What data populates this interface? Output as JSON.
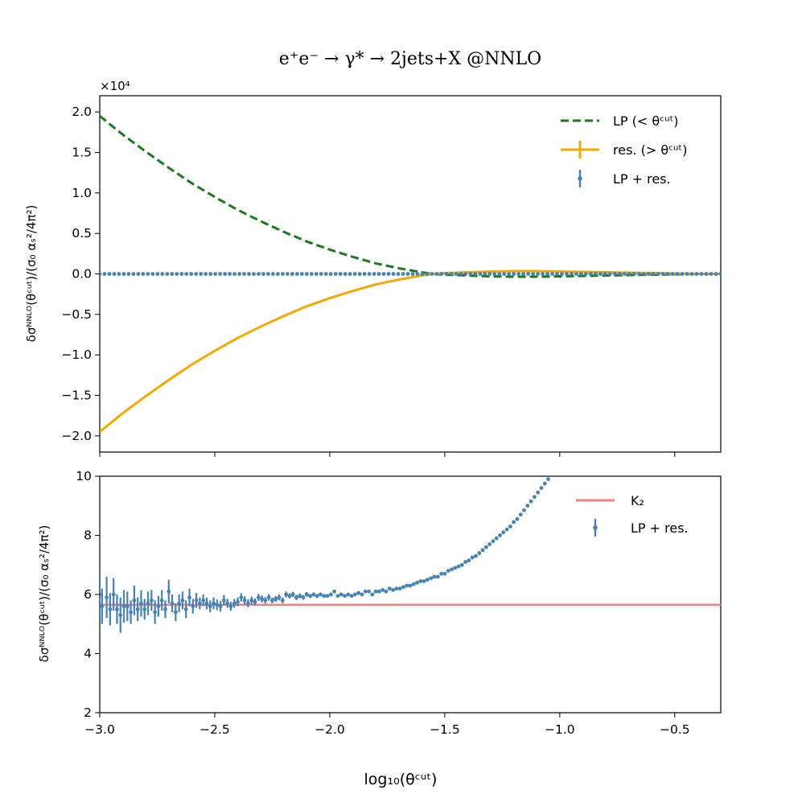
{
  "chart_data": [
    {
      "type": "line",
      "title": "e⁺e⁻ → γ* → 2jets+X @NNLO",
      "xlabel": "",
      "ylabel": "δσᴺᴺᴸᴼ(θᶜᵘᵗ)/(σ₀ αₛ²/4π²)",
      "offset_label": "×10⁴",
      "xlim": [
        -3.0,
        -0.3
      ],
      "ylim": [
        -2.2,
        2.2
      ],
      "y_scale_note": "values in units of 10^4",
      "yticks": [
        "−2.0",
        "−1.5",
        "−1.0",
        "−0.5",
        "0.0",
        "0.5",
        "1.0",
        "1.5",
        "2.0"
      ],
      "ytick_values": [
        -2.0,
        -1.5,
        -1.0,
        -0.5,
        0.0,
        0.5,
        1.0,
        1.5,
        2.0
      ],
      "legend": [
        "LP (< θᶜᵘᵗ)",
        "res. (> θᶜᵘᵗ)",
        "LP + res."
      ],
      "legend_position": "top-right",
      "series": [
        {
          "name": "LP (< θᶜᵘᵗ)",
          "style": "dashed",
          "color": "#1a7a1a",
          "x": [
            -3.0,
            -2.9,
            -2.8,
            -2.7,
            -2.6,
            -2.5,
            -2.4,
            -2.3,
            -2.2,
            -2.1,
            -2.0,
            -1.9,
            -1.8,
            -1.7,
            -1.6,
            -1.55,
            -1.5,
            -1.4,
            -1.3,
            -1.2,
            -1.1,
            -1.0,
            -0.9,
            -0.8,
            -0.7,
            -0.6,
            -0.5,
            -0.4,
            -0.3
          ],
          "y": [
            1.95,
            1.72,
            1.51,
            1.31,
            1.12,
            0.95,
            0.79,
            0.65,
            0.52,
            0.4,
            0.3,
            0.21,
            0.13,
            0.07,
            0.02,
            0.0,
            -0.01,
            -0.02,
            -0.03,
            -0.035,
            -0.035,
            -0.03,
            -0.025,
            -0.02,
            -0.015,
            -0.01,
            -0.005,
            0.0,
            0.0
          ]
        },
        {
          "name": "res. (> θᶜᵘᵗ)",
          "style": "solid",
          "color": "#f5a800",
          "x": [
            -3.0,
            -2.9,
            -2.8,
            -2.7,
            -2.6,
            -2.5,
            -2.4,
            -2.3,
            -2.2,
            -2.1,
            -2.0,
            -1.9,
            -1.8,
            -1.7,
            -1.6,
            -1.55,
            -1.5,
            -1.4,
            -1.3,
            -1.2,
            -1.1,
            -1.0,
            -0.9,
            -0.8,
            -0.7,
            -0.6,
            -0.5,
            -0.4,
            -0.3
          ],
          "y": [
            -1.95,
            -1.72,
            -1.51,
            -1.31,
            -1.12,
            -0.95,
            -0.79,
            -0.65,
            -0.52,
            -0.4,
            -0.3,
            -0.21,
            -0.13,
            -0.07,
            -0.02,
            0.0,
            0.01,
            0.02,
            0.03,
            0.035,
            0.035,
            0.03,
            0.025,
            0.02,
            0.015,
            0.01,
            0.005,
            0.0,
            0.0
          ]
        },
        {
          "name": "LP + res.",
          "style": "points",
          "color": "#4682b4",
          "x_start": -3.0,
          "x_end": -0.3,
          "count": 130,
          "y_const": 0.0
        }
      ]
    },
    {
      "type": "scatter",
      "title": "",
      "xlabel": "log₁₀(θᶜᵘᵗ)",
      "ylabel": "δσᴺᴺᴸᴼ(θᶜᵘᵗ)/(σ₀ αₛ²/4π²)",
      "xlim": [
        -3.0,
        -0.3
      ],
      "ylim": [
        2,
        10
      ],
      "xticks": [
        "−3.0",
        "−2.5",
        "−2.0",
        "−1.5",
        "−1.0",
        "−0.5"
      ],
      "xtick_values": [
        -3.0,
        -2.5,
        -2.0,
        -1.5,
        -1.0,
        -0.5
      ],
      "yticks": [
        "2",
        "4",
        "6",
        "8",
        "10"
      ],
      "ytick_values": [
        2,
        4,
        6,
        8,
        10
      ],
      "legend": [
        "K₂",
        "LP + res."
      ],
      "legend_position": "top-right",
      "K2": 5.65,
      "K2_color": "#f08080",
      "points_color": "#4682b4",
      "points": [
        [
          -3.0,
          6.0,
          0.75
        ],
        [
          -2.99,
          5.6,
          0.6
        ],
        [
          -2.97,
          5.9,
          0.7
        ],
        [
          -2.955,
          5.5,
          0.55
        ],
        [
          -2.94,
          6.0,
          0.55
        ],
        [
          -2.925,
          5.5,
          0.5
        ],
        [
          -2.91,
          5.3,
          0.6
        ],
        [
          -2.895,
          5.6,
          0.55
        ],
        [
          -2.88,
          5.6,
          0.5
        ],
        [
          -2.865,
          5.4,
          0.4
        ],
        [
          -2.85,
          5.8,
          0.5
        ],
        [
          -2.835,
          5.5,
          0.4
        ],
        [
          -2.82,
          5.7,
          0.45
        ],
        [
          -2.805,
          5.5,
          0.35
        ],
        [
          -2.79,
          5.7,
          0.4
        ],
        [
          -2.775,
          5.8,
          0.35
        ],
        [
          -2.76,
          5.4,
          0.4
        ],
        [
          -2.745,
          5.6,
          0.35
        ],
        [
          -2.73,
          5.8,
          0.35
        ],
        [
          -2.715,
          5.5,
          0.3
        ],
        [
          -2.7,
          6.1,
          0.4
        ],
        [
          -2.685,
          5.7,
          0.3
        ],
        [
          -2.67,
          5.4,
          0.3
        ],
        [
          -2.655,
          5.7,
          0.3
        ],
        [
          -2.64,
          5.8,
          0.3
        ],
        [
          -2.625,
          5.5,
          0.3
        ],
        [
          -2.61,
          5.9,
          0.3
        ],
        [
          -2.595,
          5.6,
          0.25
        ],
        [
          -2.58,
          5.8,
          0.25
        ],
        [
          -2.565,
          5.7,
          0.2
        ],
        [
          -2.55,
          5.8,
          0.2
        ],
        [
          -2.535,
          5.7,
          0.2
        ],
        [
          -2.52,
          5.6,
          0.2
        ],
        [
          -2.505,
          5.7,
          0.2
        ],
        [
          -2.49,
          5.65,
          0.18
        ],
        [
          -2.475,
          5.6,
          0.18
        ],
        [
          -2.46,
          5.8,
          0.18
        ],
        [
          -2.445,
          5.7,
          0.15
        ],
        [
          -2.43,
          5.6,
          0.15
        ],
        [
          -2.415,
          5.7,
          0.15
        ],
        [
          -2.4,
          5.75,
          0.15
        ],
        [
          -2.385,
          5.9,
          0.14
        ],
        [
          -2.37,
          5.8,
          0.14
        ],
        [
          -2.355,
          5.7,
          0.13
        ],
        [
          -2.34,
          5.8,
          0.13
        ],
        [
          -2.325,
          5.75,
          0.12
        ],
        [
          -2.31,
          5.9,
          0.12
        ],
        [
          -2.295,
          5.85,
          0.12
        ],
        [
          -2.28,
          5.8,
          0.11
        ],
        [
          -2.265,
          5.9,
          0.11
        ],
        [
          -2.25,
          5.8,
          0.1
        ],
        [
          -2.235,
          5.85,
          0.1
        ],
        [
          -2.22,
          5.9,
          0.1
        ],
        [
          -2.205,
          5.8,
          0.1
        ],
        [
          -2.19,
          6.0,
          0.1
        ],
        [
          -2.175,
          5.95,
          0.09
        ],
        [
          -2.16,
          6.0,
          0.09
        ],
        [
          -2.145,
          5.9,
          0.09
        ],
        [
          -2.13,
          5.95,
          0.08
        ],
        [
          -2.115,
          5.9,
          0.08
        ],
        [
          -2.1,
          6.0,
          0.08
        ],
        [
          -2.085,
          5.95,
          0.07
        ],
        [
          -2.07,
          6.0,
          0.07
        ],
        [
          -2.055,
          5.95,
          0.07
        ],
        [
          -2.04,
          6.0,
          0.06
        ],
        [
          -2.025,
          5.95,
          0.06
        ],
        [
          -2.01,
          5.95,
          0.06
        ],
        [
          -1.995,
          6.0,
          0.05
        ],
        [
          -1.98,
          6.1,
          0.05
        ],
        [
          -1.965,
          5.95,
          0.05
        ],
        [
          -1.95,
          6.0,
          0.05
        ],
        [
          -1.935,
          5.95,
          0.05
        ],
        [
          -1.92,
          6.0,
          0.04
        ],
        [
          -1.905,
          5.95,
          0.04
        ],
        [
          -1.89,
          6.0,
          0.04
        ],
        [
          -1.875,
          6.05,
          0.04
        ],
        [
          -1.86,
          6.0,
          0.04
        ],
        [
          -1.845,
          6.1,
          0.03
        ],
        [
          -1.83,
          6.1,
          0.03
        ],
        [
          -1.815,
          6.0,
          0.03
        ],
        [
          -1.8,
          6.1,
          0.03
        ],
        [
          -1.785,
          6.1,
          0.03
        ],
        [
          -1.77,
          6.15,
          0.03
        ],
        [
          -1.755,
          6.1,
          0.02
        ],
        [
          -1.74,
          6.2,
          0.02
        ],
        [
          -1.725,
          6.15,
          0.02
        ],
        [
          -1.71,
          6.2,
          0.02
        ],
        [
          -1.695,
          6.2,
          0.02
        ],
        [
          -1.68,
          6.25,
          0.02
        ],
        [
          -1.665,
          6.3,
          0.02
        ],
        [
          -1.65,
          6.3,
          0.02
        ],
        [
          -1.635,
          6.35,
          0.02
        ],
        [
          -1.62,
          6.4,
          0.02
        ],
        [
          -1.605,
          6.45,
          0.02
        ],
        [
          -1.59,
          6.45,
          0.02
        ],
        [
          -1.575,
          6.5,
          0.02
        ],
        [
          -1.56,
          6.55,
          0.02
        ],
        [
          -1.545,
          6.6,
          0.02
        ],
        [
          -1.53,
          6.6,
          0.02
        ],
        [
          -1.515,
          6.7,
          0.02
        ],
        [
          -1.5,
          6.7,
          0.02
        ],
        [
          -1.485,
          6.8,
          0.02
        ],
        [
          -1.47,
          6.85,
          0.02
        ],
        [
          -1.455,
          6.9,
          0.02
        ],
        [
          -1.44,
          6.95,
          0.02
        ],
        [
          -1.425,
          7.0,
          0.02
        ],
        [
          -1.41,
          7.1,
          0.02
        ],
        [
          -1.395,
          7.15,
          0.02
        ],
        [
          -1.38,
          7.25,
          0.02
        ],
        [
          -1.365,
          7.3,
          0.02
        ],
        [
          -1.35,
          7.4,
          0.02
        ],
        [
          -1.335,
          7.5,
          0.02
        ],
        [
          -1.32,
          7.6,
          0.02
        ],
        [
          -1.305,
          7.7,
          0.02
        ],
        [
          -1.29,
          7.8,
          0.02
        ],
        [
          -1.275,
          7.9,
          0.02
        ],
        [
          -1.26,
          8.0,
          0.02
        ],
        [
          -1.245,
          8.1,
          0.02
        ],
        [
          -1.23,
          8.2,
          0.02
        ],
        [
          -1.215,
          8.3,
          0.02
        ],
        [
          -1.2,
          8.45,
          0.02
        ],
        [
          -1.185,
          8.55,
          0.02
        ],
        [
          -1.17,
          8.7,
          0.02
        ],
        [
          -1.155,
          8.85,
          0.02
        ],
        [
          -1.14,
          9.0,
          0.02
        ],
        [
          -1.125,
          9.15,
          0.02
        ],
        [
          -1.11,
          9.3,
          0.02
        ],
        [
          -1.095,
          9.45,
          0.02
        ],
        [
          -1.08,
          9.6,
          0.02
        ],
        [
          -1.065,
          9.75,
          0.02
        ],
        [
          -1.05,
          9.9,
          0.02
        ]
      ]
    }
  ]
}
